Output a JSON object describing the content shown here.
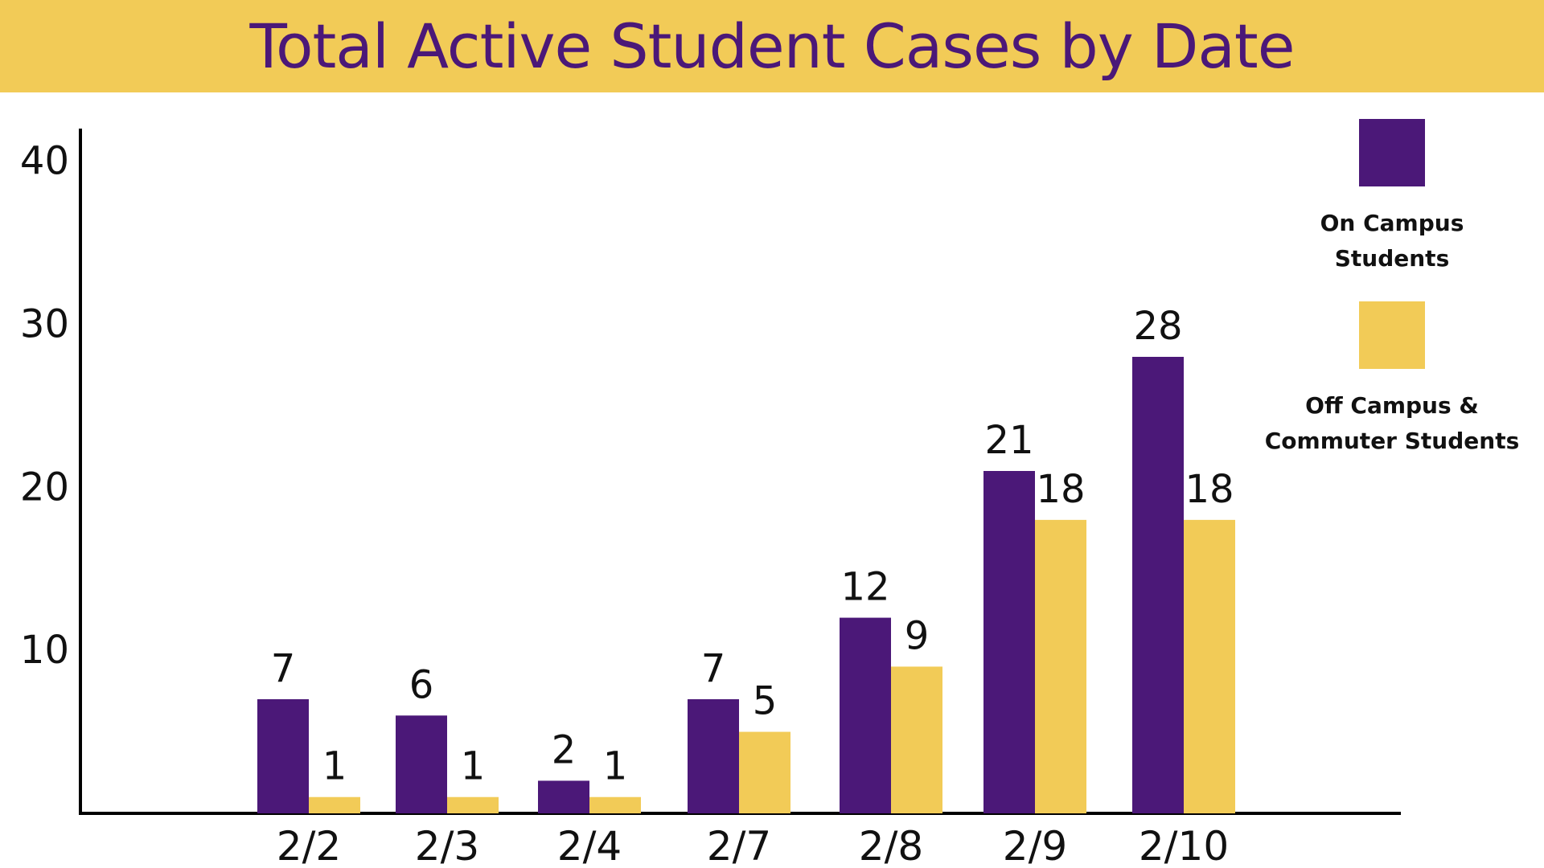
{
  "title": "Total Active Student Cases by Date",
  "colors": {
    "banner": "#f2cb57",
    "title": "#4b1878",
    "on_campus": "#4b1878",
    "off_campus": "#f2cb57"
  },
  "chart_data": {
    "type": "bar",
    "title": "Total Active Student Cases by Date",
    "xlabel": "",
    "ylabel": "",
    "categories": [
      "2/2",
      "2/3",
      "2/4",
      "2/7",
      "2/8",
      "2/9",
      "2/10"
    ],
    "series": [
      {
        "name": "On Campus Students",
        "color": "#4b1878",
        "values": [
          7,
          6,
          2,
          7,
          12,
          21,
          28
        ]
      },
      {
        "name": "Off Campus & Commuter Students",
        "color": "#f2cb57",
        "values": [
          1,
          1,
          1,
          5,
          9,
          18,
          18
        ]
      }
    ],
    "value_labels": [
      [
        "7",
        "6",
        "2",
        "7",
        "12",
        "21",
        "28"
      ],
      [
        "1",
        "1",
        "1",
        "5",
        "9",
        "18",
        "18"
      ]
    ],
    "yticks": [
      10,
      20,
      30,
      40
    ],
    "ylim": [
      0,
      42
    ],
    "grid": false,
    "legend_position": "right",
    "legend_labels": [
      [
        "On Campus",
        "Students"
      ],
      [
        "Off Campus &",
        "Commuter Students"
      ]
    ]
  }
}
